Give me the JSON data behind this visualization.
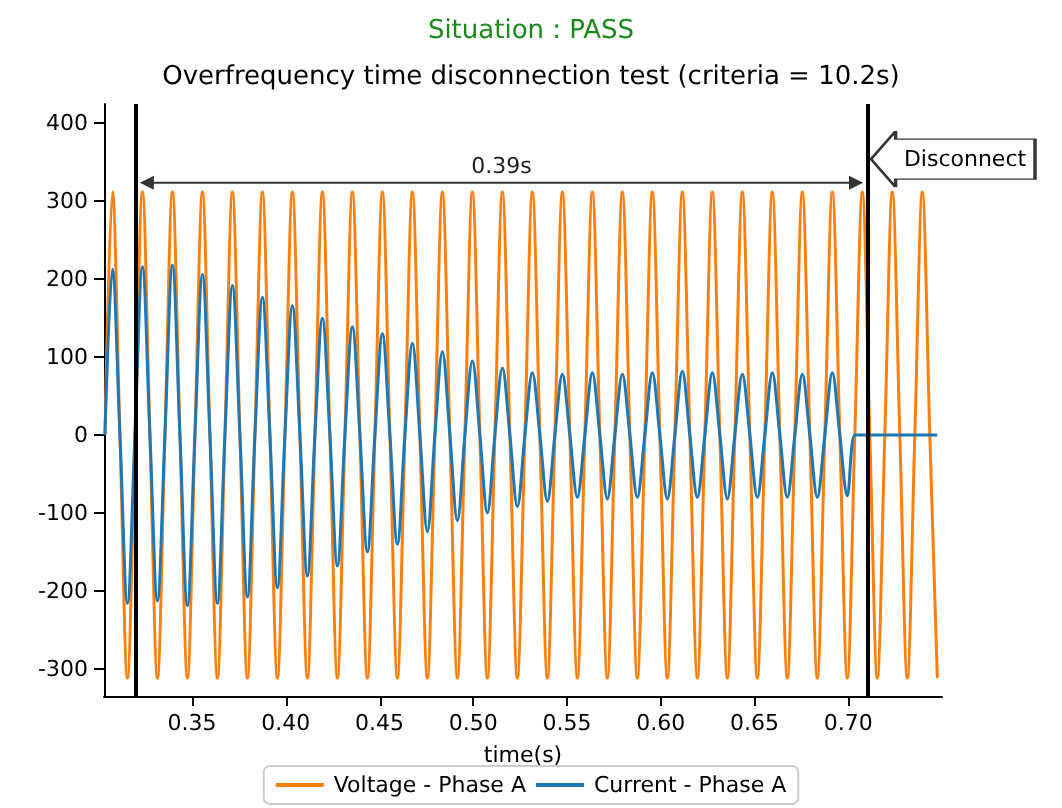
{
  "chart_data": {
    "type": "line",
    "subtitle": "Situation : PASS",
    "title": "Overfrequency time disconnection test (criteria = 10.2s)",
    "xlabel": "time(s)",
    "x": [
      0.3035,
      0.3075,
      0.3115,
      0.3155,
      0.3195,
      0.3235,
      0.3275,
      0.3315,
      0.3355,
      0.3395,
      0.3435,
      0.3475,
      0.3515,
      0.3555,
      0.3595,
      0.3635,
      0.3675,
      0.3715,
      0.3755,
      0.3795,
      0.3835,
      0.3875,
      0.3915,
      0.3955,
      0.3995,
      0.4035,
      0.4075,
      0.4115,
      0.4155,
      0.4195,
      0.4235,
      0.4275,
      0.4315,
      0.4355,
      0.4395,
      0.4435,
      0.4475,
      0.4515,
      0.4555,
      0.4595,
      0.4635,
      0.4675,
      0.4715,
      0.4755,
      0.4795,
      0.4835,
      0.4875,
      0.4915,
      0.4955,
      0.4995,
      0.5035,
      0.5075,
      0.5115,
      0.5155,
      0.5195,
      0.5235,
      0.5275,
      0.5315,
      0.5355,
      0.5395,
      0.5435,
      0.5475,
      0.5515,
      0.5555,
      0.5595,
      0.5635,
      0.5675,
      0.5715,
      0.5755,
      0.5795,
      0.5835,
      0.5875,
      0.5915,
      0.5955,
      0.5995,
      0.6035,
      0.6075,
      0.6115,
      0.6155,
      0.6195,
      0.6235,
      0.6275,
      0.6315,
      0.6355,
      0.6395,
      0.6435,
      0.6475,
      0.6515,
      0.6555,
      0.6595,
      0.6635,
      0.6675,
      0.6715,
      0.6755,
      0.6795,
      0.6835,
      0.6875,
      0.6915,
      0.6955,
      0.6995,
      0.7035,
      0.7075,
      0.7115,
      0.7155,
      0.7195,
      0.7235,
      0.7275,
      0.7315,
      0.7355,
      0.7395,
      0.7435,
      0.7475
    ],
    "series": [
      {
        "name": "Voltage - Phase A",
        "color": "#ff7f0e",
        "values": [
          0,
          312,
          0,
          -312,
          0,
          312,
          0,
          -312,
          0,
          312,
          0,
          -312,
          0,
          312,
          0,
          -312,
          0,
          312,
          0,
          -312,
          0,
          312,
          0,
          -312,
          0,
          312,
          0,
          -312,
          0,
          312,
          0,
          -312,
          0,
          312,
          0,
          -312,
          0,
          312,
          0,
          -312,
          0,
          312,
          0,
          -312,
          0,
          312,
          0,
          -312,
          0,
          312,
          0,
          -312,
          0,
          312,
          0,
          -312,
          0,
          312,
          0,
          -312,
          0,
          312,
          0,
          -312,
          0,
          312,
          0,
          -312,
          0,
          312,
          0,
          -312,
          0,
          312,
          0,
          -312,
          0,
          312,
          0,
          -312,
          0,
          312,
          0,
          -312,
          0,
          312,
          0,
          -312,
          0,
          312,
          0,
          -312,
          0,
          312,
          0,
          -312,
          0,
          312,
          0,
          -312,
          0,
          312,
          0,
          -312,
          0,
          312,
          0,
          -312,
          0,
          312,
          0,
          -312
        ]
      },
      {
        "name": "Current - Phase A",
        "color": "#1f77b4",
        "values": [
          0,
          213,
          0,
          -216,
          0,
          216,
          0,
          -213,
          0,
          218,
          0,
          -219,
          0,
          206,
          0,
          -216,
          0,
          192,
          0,
          -208,
          0,
          177,
          0,
          -196,
          0,
          166,
          0,
          -181,
          0,
          150,
          0,
          -168,
          0,
          139,
          0,
          -150,
          0,
          130,
          0,
          -140,
          0,
          118,
          0,
          -124,
          0,
          107,
          0,
          -110,
          0,
          95,
          0,
          -100,
          0,
          86,
          0,
          -92,
          0,
          80,
          0,
          -85,
          0,
          78,
          0,
          -80,
          0,
          80,
          0,
          -82,
          0,
          78,
          0,
          -80,
          0,
          80,
          0,
          -82,
          0,
          82,
          0,
          -80,
          0,
          80,
          0,
          -82,
          0,
          78,
          0,
          -80,
          0,
          80,
          0,
          -80,
          0,
          78,
          0,
          -80,
          0,
          80,
          0,
          -78,
          0,
          0,
          0,
          0,
          0,
          0,
          0,
          0,
          0,
          0,
          0,
          0
        ]
      }
    ],
    "xlim": [
      0.303,
      0.75
    ],
    "xticks": [
      {
        "value": 0.35,
        "label": "0.35"
      },
      {
        "value": 0.4,
        "label": "0.40"
      },
      {
        "value": 0.45,
        "label": "0.45"
      },
      {
        "value": 0.5,
        "label": "0.50"
      },
      {
        "value": 0.55,
        "label": "0.55"
      },
      {
        "value": 0.6,
        "label": "0.60"
      },
      {
        "value": 0.65,
        "label": "0.65"
      },
      {
        "value": 0.7,
        "label": "0.70"
      }
    ],
    "ylim": [
      -335,
      425
    ],
    "yticks": [
      -300,
      -200,
      -100,
      0,
      100,
      200,
      300,
      400
    ],
    "ref_lines": [
      {
        "axis": "x",
        "value": 0.32,
        "color": "#000000"
      },
      {
        "axis": "x",
        "value": 0.71,
        "color": "#000000"
      }
    ],
    "annotations": [
      "0.39s",
      "Disconnect"
    ],
    "marker": "none",
    "line_style": "solid",
    "grid": false,
    "legend": "bottom"
  }
}
